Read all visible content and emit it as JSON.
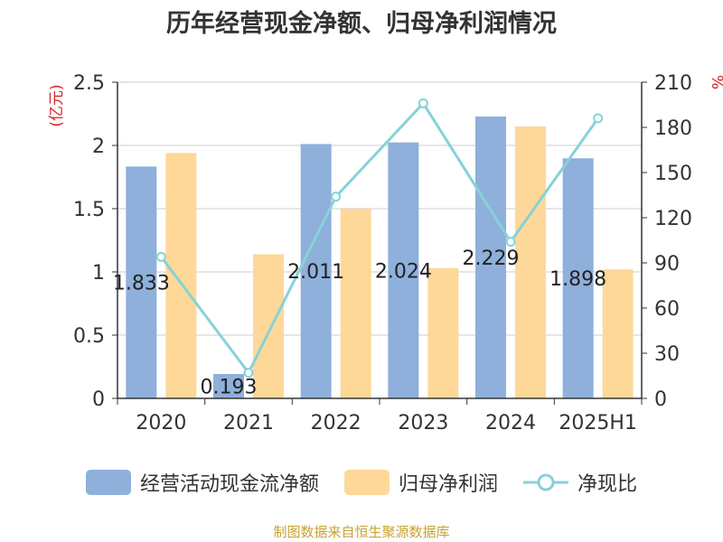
{
  "title": "历年经营现金净额、归母净利润情况",
  "source_note": "制图数据来自恒生聚源数据库",
  "colors": {
    "operating_cash": "#8eb0db",
    "net_profit": "#fed898",
    "ratio": "#86d2d8",
    "axis_unit": "#d62222",
    "grid": "#cccccc",
    "axis": "#333333",
    "text": "#333333"
  },
  "chart_data": {
    "type": "bar",
    "title": "历年经营现金净额、归母净利润情况",
    "categories": [
      "2020",
      "2021",
      "2022",
      "2023",
      "2024",
      "2025H1"
    ],
    "y_left": {
      "unit": "亿元",
      "unit_label": "(亿元)",
      "min": 0,
      "max": 2.5,
      "ticks": [
        "0",
        "0.5",
        "1",
        "1.5",
        "2",
        "2.5"
      ]
    },
    "y_right": {
      "unit": "%",
      "min": 0,
      "max": 210,
      "ticks": [
        "0",
        "30",
        "60",
        "90",
        "120",
        "150",
        "180",
        "210"
      ]
    },
    "series": [
      {
        "name": "经营活动现金流净额",
        "type": "bar",
        "axis": "left",
        "values": [
          1.833,
          0.193,
          2.011,
          2.024,
          2.229,
          1.898
        ],
        "labels": [
          "1.833",
          "0.193",
          "2.011",
          "2.024",
          "2.229",
          "1.898"
        ]
      },
      {
        "name": "归母净利润",
        "type": "bar",
        "axis": "left",
        "values": [
          1.94,
          1.14,
          1.5,
          1.03,
          2.15,
          1.02
        ]
      },
      {
        "name": "净现比",
        "type": "line",
        "axis": "right",
        "values": [
          94,
          17,
          134,
          196,
          104,
          186
        ]
      }
    ],
    "grid": true,
    "legend_position": "bottom"
  }
}
